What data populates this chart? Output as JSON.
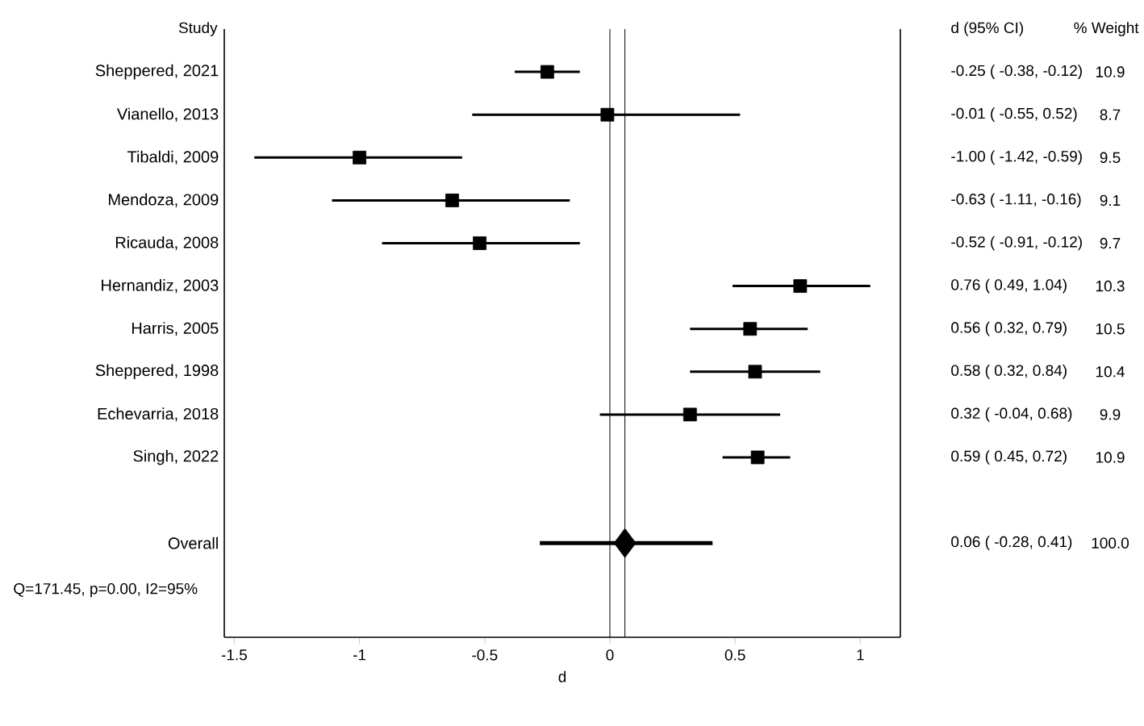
{
  "chart_data": {
    "type": "scatter",
    "orientation": "horizontal",
    "xlabel": "d",
    "xlim": [
      -1.54,
      1.16
    ],
    "xticks": [
      -1.5,
      -1,
      -0.5,
      0,
      0.5,
      1
    ],
    "grid": false,
    "categories": [
      "Sheppered, 2021",
      "Vianello, 2013",
      "Tibaldi, 2009",
      "Mendoza, 2009",
      "Ricauda, 2008",
      "Hernandiz, 2003",
      "Harris, 2005",
      "Sheppered, 1998",
      "Echevarria, 2018",
      "Singh, 2022",
      null,
      "Overall"
    ],
    "series": [
      {
        "marker": "square",
        "color": "#000000",
        "values": [
          -0.25,
          -0.01,
          -1.0,
          -0.63,
          -0.52,
          0.76,
          0.56,
          0.58,
          0.32,
          0.59,
          null,
          null
        ],
        "errors": [
          [
            -0.38,
            -0.12
          ],
          [
            -0.55,
            0.52
          ],
          [
            -1.42,
            -0.59
          ],
          [
            -1.11,
            -0.16
          ],
          [
            -0.91,
            -0.12
          ],
          [
            0.49,
            1.04
          ],
          [
            0.32,
            0.79
          ],
          [
            0.32,
            0.84
          ],
          [
            -0.04,
            0.68
          ],
          [
            0.45,
            0.72
          ],
          null,
          null
        ]
      },
      {
        "marker": "diamond",
        "color": "#000000",
        "values": [
          null,
          null,
          null,
          null,
          null,
          null,
          null,
          null,
          null,
          null,
          null,
          0.06
        ],
        "errors": [
          null,
          null,
          null,
          null,
          null,
          null,
          null,
          null,
          null,
          null,
          null,
          [
            -0.28,
            0.41
          ]
        ]
      }
    ],
    "ref_lines": [
      {
        "axis": "x",
        "value": 0,
        "color": "#000000"
      },
      {
        "axis": "x",
        "value": 0.06,
        "color": "#000000"
      }
    ],
    "annotations": [
      "Study",
      "d (95% CI)",
      "% Weight",
      "-0.25 ( -0.38, -0.12)",
      "10.9",
      "-0.01 ( -0.55, 0.52)",
      "8.7",
      "-1.00 ( -1.42, -0.59)",
      "9.5",
      "-0.63 ( -1.11, -0.16)",
      "9.1",
      "-0.52 ( -0.91, -0.12)",
      "9.7",
      "0.76 ( 0.49, 1.04)",
      "10.3",
      "0.56 ( 0.32, 0.79)",
      "10.5",
      "0.58 ( 0.32, 0.84)",
      "10.4",
      "0.32 ( -0.04, 0.68)",
      "9.9",
      "0.59 ( 0.45, 0.72)",
      "10.9",
      "0.06 ( -0.28, 0.41)",
      "100.0",
      "Q=171.45, p=0.00, I2=95%"
    ]
  }
}
